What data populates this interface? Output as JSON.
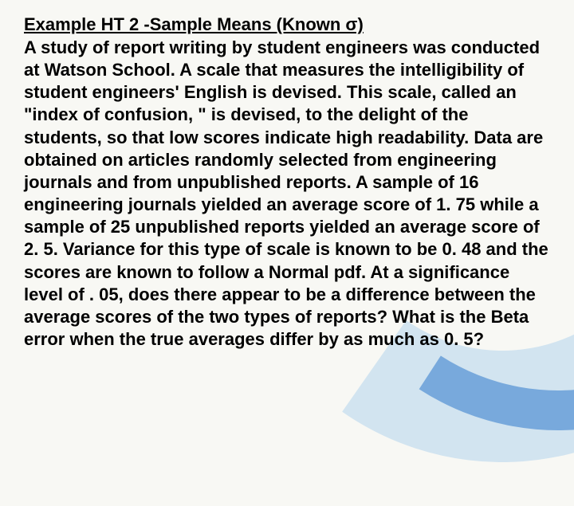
{
  "slide": {
    "heading": "Example HT 2 -Sample Means (Known σ)",
    "body": "A study of report writing by student engineers was conducted at Watson School. A scale that measures the intelligibility of student engineers' English is devised. This scale, called an \"index of confusion, \" is devised, to the delight of the students, so that low scores indicate high readability. Data are obtained on articles randomly selected from engineering journals and from unpublished reports. A sample of 16 engineering journals yielded an average score of 1. 75 while a sample of 25 unpublished reports yielded an average score of 2. 5. Variance for this type of scale is known to be 0. 48 and the scores are known to follow a Normal pdf. At a significance level of . 05, does there appear to be a difference between the average scores of the two types of reports? What is the Beta error when the true averages differ by as much as 0. 5?"
  },
  "style": {
    "background_color": "#f8f8f4",
    "text_color": "#000000",
    "swoosh_color_light": "rgba(40,140,220,0.18)",
    "swoosh_color_dark": "rgba(30,110,200,0.5)",
    "heading_fontsize": 22,
    "body_fontsize": 22,
    "font_weight": "bold",
    "font_family": "Arial"
  }
}
